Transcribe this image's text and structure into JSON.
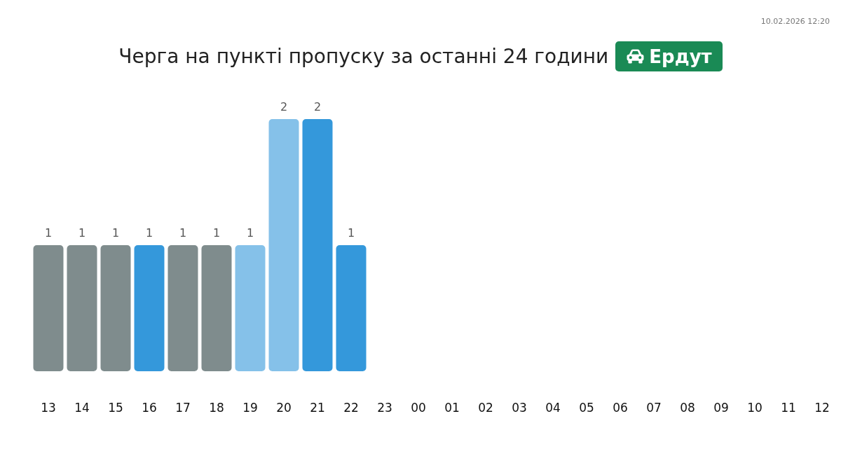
{
  "chart_data": {
    "type": "bar",
    "title": "Черга на пункті пропуску за останні 24 години",
    "subtitle": "Ердут",
    "annotations": [
      "10.02.2026 12:20"
    ],
    "categories": [
      "13",
      "14",
      "15",
      "16",
      "17",
      "18",
      "19",
      "20",
      "21",
      "22",
      "23",
      "00",
      "01",
      "02",
      "03",
      "04",
      "05",
      "06",
      "07",
      "08",
      "09",
      "10",
      "11",
      "12"
    ],
    "values": [
      1,
      1,
      1,
      1,
      1,
      1,
      1,
      2,
      2,
      1,
      null,
      null,
      null,
      null,
      null,
      null,
      null,
      null,
      null,
      null,
      null,
      null,
      null,
      null
    ],
    "colors": [
      "#7f8c8d",
      "#7f8c8d",
      "#7f8c8d",
      "#3498db",
      "#7f8c8d",
      "#7f8c8d",
      "#85c1e9",
      "#85c1e9",
      "#3498db",
      "#3498db",
      null,
      null,
      null,
      null,
      null,
      null,
      null,
      null,
      null,
      null,
      null,
      null,
      null,
      null
    ],
    "data_labels": true,
    "tick_labels": "x"
  }
}
